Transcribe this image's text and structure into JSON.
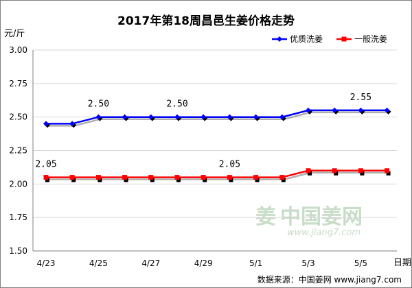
{
  "chart_data": {
    "type": "line",
    "title": "2017年第18周昌邑生姜价格走势",
    "ylabel": "元/斤",
    "xlabel": "日期",
    "ylim": [
      1.5,
      3.0
    ],
    "yticks": [
      "3.00",
      "2.75",
      "2.50",
      "2.25",
      "2.00",
      "1.75",
      "1.50"
    ],
    "x": [
      "4/23",
      "4/24",
      "4/25",
      "4/26",
      "4/27",
      "4/28",
      "4/29",
      "4/30",
      "5/1",
      "5/2",
      "5/3",
      "5/4",
      "5/5",
      "5/6"
    ],
    "xtick_labels": [
      "4/23",
      "4/25",
      "4/27",
      "4/29",
      "5/1",
      "5/3",
      "5/5"
    ],
    "series": [
      {
        "name": "优质洗姜",
        "color": "#0000ff",
        "values": [
          2.45,
          2.45,
          2.5,
          2.5,
          2.5,
          2.5,
          2.5,
          2.5,
          2.5,
          2.5,
          2.55,
          2.55,
          2.55,
          2.55
        ]
      },
      {
        "name": "一般洗姜",
        "color": "#ff0000",
        "values": [
          2.05,
          2.05,
          2.05,
          2.05,
          2.05,
          2.05,
          2.05,
          2.05,
          2.05,
          2.05,
          2.1,
          2.1,
          2.1,
          2.1
        ]
      }
    ],
    "annotations": [
      {
        "text": "2.50",
        "series": 0,
        "index": 2
      },
      {
        "text": "2.50",
        "series": 0,
        "index": 5
      },
      {
        "text": "2.55",
        "series": 0,
        "index": 12
      },
      {
        "text": "2.05",
        "series": 1,
        "index": 0
      },
      {
        "text": "2.05",
        "series": 1,
        "index": 7
      }
    ],
    "grid": true,
    "legend_position": "top-right"
  },
  "watermark": {
    "name": "中国姜网",
    "url": "www.jiang7.com"
  },
  "source": {
    "label": "数据来源：中国姜网 www.jiang7.com"
  }
}
